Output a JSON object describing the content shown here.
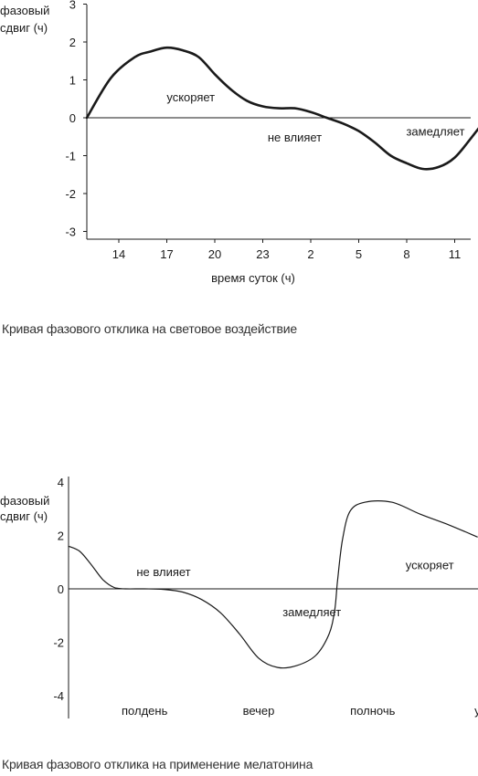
{
  "chart_data": [
    {
      "type": "line",
      "title": "",
      "ylabel": "фазовый сдвиг (ч)",
      "xlabel": "время суток (ч)",
      "ylim": [
        -3,
        3
      ],
      "yticks": [
        "3",
        "2",
        "1",
        "0",
        "-1",
        "-2",
        "-3"
      ],
      "xticks": [
        "14",
        "17",
        "20",
        "23",
        "2",
        "5",
        "8",
        "11"
      ],
      "grid": false,
      "series": [
        {
          "color": "#1a1a1a",
          "points": [
            [
              12.0,
              0.0
            ],
            [
              13.5,
              1.05
            ],
            [
              15.0,
              1.6
            ],
            [
              16.0,
              1.75
            ],
            [
              17.0,
              1.85
            ],
            [
              18.0,
              1.78
            ],
            [
              19.0,
              1.6
            ],
            [
              20.0,
              1.15
            ],
            [
              21.0,
              0.75
            ],
            [
              22.0,
              0.45
            ],
            [
              23.0,
              0.3
            ],
            [
              24.0,
              0.25
            ],
            [
              25.0,
              0.25
            ],
            [
              26.0,
              0.15
            ],
            [
              27.0,
              0.0
            ],
            [
              28.0,
              -0.15
            ],
            [
              29.0,
              -0.35
            ],
            [
              30.0,
              -0.65
            ],
            [
              31.0,
              -1.0
            ],
            [
              32.0,
              -1.2
            ],
            [
              33.0,
              -1.35
            ],
            [
              34.0,
              -1.3
            ],
            [
              35.0,
              -1.05
            ],
            [
              36.0,
              -0.55
            ],
            [
              37.0,
              0.0
            ]
          ]
        }
      ],
      "annotations": [
        {
          "text": "ускоряет",
          "x": 18.5,
          "y": 0.55
        },
        {
          "text": "не влияет",
          "x": 25.0,
          "y": -0.5
        },
        {
          "text": "замедляет",
          "x": 33.8,
          "y": -0.35
        }
      ]
    },
    {
      "type": "line",
      "title": "",
      "ylabel": "фазовый сдвиг (ч)",
      "xlabel": "",
      "ylim": [
        -4,
        4
      ],
      "yticks": [
        "4",
        "2",
        "0",
        "-2",
        "-4"
      ],
      "xcategories": [
        {
          "label": "полдень",
          "x": 12
        },
        {
          "label": "вечер",
          "x": 18
        },
        {
          "label": "полночь",
          "x": 24
        },
        {
          "label": "утро",
          "x": 30
        }
      ],
      "grid": false,
      "series": [
        {
          "color": "#1a1a1a",
          "points": [
            [
              8.0,
              1.6
            ],
            [
              8.6,
              1.4
            ],
            [
              9.2,
              0.9
            ],
            [
              9.8,
              0.35
            ],
            [
              10.4,
              0.05
            ],
            [
              11.0,
              0.0
            ],
            [
              12.0,
              0.0
            ],
            [
              13.0,
              -0.02
            ],
            [
              14.0,
              -0.12
            ],
            [
              15.0,
              -0.4
            ],
            [
              16.0,
              -0.9
            ],
            [
              17.0,
              -1.7
            ],
            [
              18.0,
              -2.6
            ],
            [
              19.0,
              -2.95
            ],
            [
              20.0,
              -2.88
            ],
            [
              21.0,
              -2.5
            ],
            [
              21.7,
              -1.7
            ],
            [
              22.0,
              -0.8
            ],
            [
              22.15,
              0.3
            ],
            [
              22.4,
              1.8
            ],
            [
              22.8,
              2.9
            ],
            [
              23.6,
              3.25
            ],
            [
              25.0,
              3.25
            ],
            [
              26.5,
              2.8
            ],
            [
              28.0,
              2.4
            ],
            [
              29.5,
              1.95
            ]
          ]
        }
      ],
      "annotations": [
        {
          "text": "не влияет",
          "x": 13.0,
          "y": 0.65
        },
        {
          "text": "замедляет",
          "x": 20.8,
          "y": -0.85
        },
        {
          "text": "ускоряет",
          "x": 27.0,
          "y": 0.9
        }
      ]
    }
  ],
  "captions": {
    "light": "Кривая фазового отклика на световое воздействие",
    "melatonin": "Кривая фазового отклика на применение мелатонина"
  }
}
